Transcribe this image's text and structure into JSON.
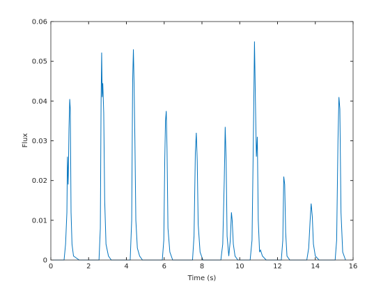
{
  "chart_data": {
    "type": "line",
    "x_label": "Time (s)",
    "y_label": "Flux",
    "color": "#0072bd",
    "x": [
      0,
      0.7,
      0.78,
      0.85,
      0.88,
      0.92,
      0.96,
      1.0,
      1.03,
      1.07,
      1.12,
      1.2,
      1.35,
      1.5,
      2.55,
      2.62,
      2.66,
      2.69,
      2.72,
      2.75,
      2.8,
      2.85,
      2.92,
      3.05,
      3.2,
      4.2,
      4.28,
      4.33,
      4.37,
      4.41,
      4.45,
      4.5,
      4.58,
      4.7,
      4.85,
      5.9,
      5.98,
      6.03,
      6.07,
      6.11,
      6.15,
      6.2,
      6.3,
      6.45,
      7.5,
      7.58,
      7.65,
      7.7,
      7.75,
      7.8,
      7.9,
      8.05,
      9.0,
      9.1,
      9.18,
      9.23,
      9.28,
      9.33,
      9.42,
      9.5,
      9.56,
      9.6,
      9.66,
      9.75,
      9.9,
      10.55,
      10.65,
      10.72,
      10.78,
      10.83,
      10.88,
      10.93,
      10.98,
      11.05,
      11.1,
      11.2,
      11.4,
      12.2,
      12.28,
      12.33,
      12.38,
      12.43,
      12.5,
      12.65,
      13.55,
      13.65,
      13.72,
      13.78,
      13.84,
      13.9,
      14.0,
      14.2,
      15.05,
      15.13,
      15.2,
      15.25,
      15.3,
      15.36,
      15.45,
      15.6
    ],
    "values": [
      0,
      0,
      0.004,
      0.012,
      0.026,
      0.019,
      0.033,
      0.0405,
      0.038,
      0.012,
      0.004,
      0.001,
      0.0005,
      0,
      0,
      0.008,
      0.04,
      0.0522,
      0.041,
      0.0445,
      0.037,
      0.015,
      0.004,
      0.001,
      0,
      0,
      0.01,
      0.045,
      0.053,
      0.0435,
      0.03,
      0.01,
      0.003,
      0.001,
      0,
      0,
      0.005,
      0.025,
      0.035,
      0.0375,
      0.028,
      0.008,
      0.002,
      0,
      0,
      0.006,
      0.027,
      0.032,
      0.025,
      0.009,
      0.002,
      0,
      0,
      0.004,
      0.02,
      0.0335,
      0.025,
      0.006,
      0.001,
      0.005,
      0.012,
      0.01,
      0.004,
      0.001,
      0,
      0,
      0.005,
      0.03,
      0.055,
      0.04,
      0.026,
      0.031,
      0.01,
      0.002,
      0.0025,
      0.001,
      0,
      0,
      0.005,
      0.021,
      0.019,
      0.007,
      0.001,
      0,
      0,
      0.003,
      0.0095,
      0.0142,
      0.011,
      0.004,
      0.001,
      0,
      0,
      0.005,
      0.03,
      0.041,
      0.038,
      0.012,
      0.002,
      0
    ],
    "xlim": [
      0,
      16
    ],
    "xticks": [
      0,
      2,
      4,
      6,
      8,
      10,
      12,
      14,
      16
    ],
    "ylim": [
      0,
      0.06
    ],
    "yticks": [
      0,
      0.01,
      0.02,
      0.03,
      0.04,
      0.05,
      0.06
    ]
  }
}
